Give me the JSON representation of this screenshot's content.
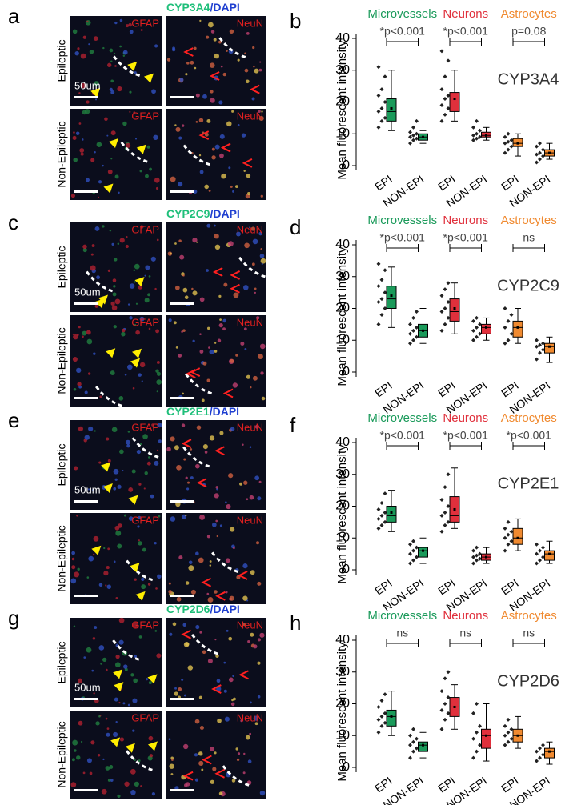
{
  "figure": [
    {
      "panel": "a",
      "stain": "CYP3A4",
      "sep": "/",
      "counterstain": "DAPI",
      "row_labels": [
        "Epileptic",
        "Non-Epileptic"
      ],
      "channel_labels": [
        "GFAP",
        "NeuN"
      ],
      "scale": "50um"
    },
    {
      "panel": "c",
      "stain": "CYP2C9",
      "sep": "/",
      "counterstain": "DAPI",
      "row_labels": [
        "Epileptic",
        "Non-Epileptic"
      ],
      "channel_labels": [
        "GFAP",
        "NeuN"
      ],
      "scale": "50um"
    },
    {
      "panel": "e",
      "stain": "CYP2E1",
      "sep": "/",
      "counterstain": "DAPI",
      "row_labels": [
        "Epileptic",
        "Non-Epileptic"
      ],
      "channel_labels": [
        "GFAP",
        "NeuN"
      ],
      "scale": "50um"
    },
    {
      "panel": "g",
      "stain": "CYP2D6",
      "sep": "/",
      "counterstain": "DAPI",
      "row_labels": [
        "Epileptic",
        "Non-Epileptic"
      ],
      "channel_labels": [
        "GFAP",
        "NeuN"
      ],
      "scale": "50um"
    }
  ],
  "chart_data": [
    {
      "type": "box",
      "panel": "b",
      "title": "CYP3A4",
      "ylabel": "Mean fluorescent intensity",
      "ylim": [
        0,
        40
      ],
      "yticks": [
        0,
        10,
        20,
        30,
        40
      ],
      "categories": [
        "EPI",
        "NON-EPI",
        "EPI",
        "NON-EPI",
        "EPI",
        "NON-EPI"
      ],
      "groups": [
        {
          "name": "Microvessels",
          "color": "#1a9a5a",
          "test": "*p<0.001"
        },
        {
          "name": "Neurons",
          "color": "#e0303c",
          "test": "*p<0.001"
        },
        {
          "name": "Astrocytes",
          "color": "#f08a30",
          "test": "p=0.08"
        }
      ],
      "boxes": [
        {
          "whisker_low": 11,
          "q1": 14,
          "median": 17,
          "q3": 21,
          "whisker_high": 30,
          "mean": 18,
          "points": [
            12,
            14,
            15,
            17,
            18,
            20,
            22,
            24,
            28,
            31
          ]
        },
        {
          "whisker_low": 7,
          "q1": 8,
          "median": 9,
          "q3": 10,
          "whisker_high": 11,
          "mean": 9,
          "points": [
            7,
            8,
            8.5,
            9,
            9.5,
            10,
            10.5,
            12,
            14
          ]
        },
        {
          "whisker_low": 14,
          "q1": 17,
          "median": 20,
          "q3": 23,
          "whisker_high": 30,
          "mean": 21,
          "points": [
            14,
            16,
            18,
            19,
            21,
            22,
            24,
            28,
            33,
            36
          ]
        },
        {
          "whisker_low": 8,
          "q1": 9,
          "median": 9.5,
          "q3": 10.5,
          "whisker_high": 12,
          "mean": 9.5,
          "points": [
            8,
            8.5,
            9,
            9.5,
            10,
            11,
            12,
            14
          ]
        },
        {
          "whisker_low": 3,
          "q1": 6,
          "median": 7,
          "q3": 8.5,
          "whisker_high": 10,
          "mean": 7,
          "points": [
            4,
            5,
            6,
            7,
            7.5,
            8,
            9,
            10
          ]
        },
        {
          "whisker_low": 2,
          "q1": 3,
          "median": 4,
          "q3": 5,
          "whisker_high": 7,
          "mean": 4,
          "points": [
            1,
            2,
            3,
            3.5,
            4,
            5,
            6,
            7
          ]
        }
      ]
    },
    {
      "type": "box",
      "panel": "d",
      "title": "CYP2C9",
      "ylabel": "Mean fluorescent intensity",
      "ylim": [
        0,
        40
      ],
      "yticks": [
        0,
        10,
        20,
        30,
        40
      ],
      "categories": [
        "EPI",
        "NON-EPI",
        "EPI",
        "NON-EPI",
        "EPI",
        "NON-EPI"
      ],
      "groups": [
        {
          "name": "Microvessels",
          "color": "#1a9a5a",
          "test": "*p<0.001"
        },
        {
          "name": "Neurons",
          "color": "#e0303c",
          "test": "*p<0.001"
        },
        {
          "name": "Astrocytes",
          "color": "#f08a30",
          "test": "ns"
        }
      ],
      "boxes": [
        {
          "whisker_low": 14,
          "q1": 20,
          "median": 23,
          "q3": 27,
          "whisker_high": 33,
          "mean": 24,
          "points": [
            15,
            18,
            20,
            22,
            23,
            25,
            27,
            29,
            32,
            34
          ]
        },
        {
          "whisker_low": 9,
          "q1": 11,
          "median": 13,
          "q3": 15,
          "whisker_high": 20,
          "mean": 13,
          "points": [
            9,
            10,
            11,
            12,
            13,
            14,
            15,
            17,
            19
          ]
        },
        {
          "whisker_low": 12,
          "q1": 16,
          "median": 19,
          "q3": 23,
          "whisker_high": 28,
          "mean": 20,
          "points": [
            13,
            15,
            17,
            19,
            20,
            22,
            24,
            26,
            28
          ]
        },
        {
          "whisker_low": 10,
          "q1": 12,
          "median": 14,
          "q3": 15,
          "whisker_high": 17,
          "mean": 14,
          "points": [
            10,
            11,
            12,
            13,
            14,
            15,
            16,
            17
          ]
        },
        {
          "whisker_low": 9,
          "q1": 11,
          "median": 14,
          "q3": 16,
          "whisker_high": 20,
          "mean": 14,
          "points": [
            9,
            10,
            12,
            14,
            16,
            18,
            20
          ]
        },
        {
          "whisker_low": 3,
          "q1": 6,
          "median": 8,
          "q3": 9,
          "whisker_high": 11,
          "mean": 8,
          "points": [
            4,
            6,
            7,
            8,
            8.5,
            9,
            10
          ]
        }
      ]
    },
    {
      "type": "box",
      "panel": "f",
      "title": "CYP2E1",
      "ylabel": "Mean fluorescent intensity",
      "ylim": [
        0,
        40
      ],
      "yticks": [
        0,
        10,
        20,
        30,
        40
      ],
      "categories": [
        "EPI",
        "NON-EPI",
        "EPI",
        "NON-EPI",
        "EPI",
        "NON-EPI"
      ],
      "groups": [
        {
          "name": "Microvessels",
          "color": "#1a9a5a",
          "test": "*p<0.001"
        },
        {
          "name": "Neurons",
          "color": "#e0303c",
          "test": "*p<0.001"
        },
        {
          "name": "Astrocytes",
          "color": "#f08a30",
          "test": "*p<0.001"
        }
      ],
      "boxes": [
        {
          "whisker_low": 12,
          "q1": 15,
          "median": 17,
          "q3": 20,
          "whisker_high": 25,
          "mean": 18,
          "points": [
            13,
            14,
            15,
            16,
            17,
            18,
            19,
            21,
            24
          ]
        },
        {
          "whisker_low": 2,
          "q1": 4,
          "median": 6,
          "q3": 7,
          "whisker_high": 10,
          "mean": 6,
          "points": [
            2,
            3,
            4,
            5,
            6,
            7,
            8,
            9
          ]
        },
        {
          "whisker_low": 13,
          "q1": 15,
          "median": 17,
          "q3": 23,
          "whisker_high": 32,
          "mean": 19,
          "points": [
            12,
            14,
            15,
            17,
            18,
            20,
            22,
            26,
            30
          ]
        },
        {
          "whisker_low": 2,
          "q1": 3,
          "median": 4,
          "q3": 5,
          "whisker_high": 7,
          "mean": 4,
          "points": [
            2,
            3,
            3.5,
            4,
            4.5,
            5,
            6,
            7
          ]
        },
        {
          "whisker_low": 6,
          "q1": 8,
          "median": 10,
          "q3": 13,
          "whisker_high": 16,
          "mean": 10,
          "points": [
            6,
            8,
            9,
            10,
            11,
            12,
            13,
            15
          ]
        },
        {
          "whisker_low": 2,
          "q1": 3,
          "median": 5,
          "q3": 6,
          "whisker_high": 9,
          "mean": 5,
          "points": [
            2,
            3,
            4,
            5,
            6,
            7,
            8
          ]
        }
      ]
    },
    {
      "type": "box",
      "panel": "h",
      "title": "CYP2D6",
      "ylabel": "Mean fluorescent intensity",
      "ylim": [
        0,
        40
      ],
      "yticks": [
        0,
        10,
        20,
        30,
        40
      ],
      "categories": [
        "EPI",
        "NON-EPI",
        "EPI",
        "NON-EPI",
        "EPI",
        "NON-EPI"
      ],
      "groups": [
        {
          "name": "Microvessels",
          "color": "#1a9a5a",
          "test": "ns"
        },
        {
          "name": "Neurons",
          "color": "#e0303c",
          "test": "ns"
        },
        {
          "name": "Astrocytes",
          "color": "#f08a30",
          "test": "ns"
        }
      ],
      "boxes": [
        {
          "whisker_low": 10,
          "q1": 13,
          "median": 16,
          "q3": 18,
          "whisker_high": 24,
          "mean": 16,
          "points": [
            11,
            13,
            14,
            15,
            16,
            17,
            19,
            21,
            23
          ]
        },
        {
          "whisker_low": 3,
          "q1": 5,
          "median": 7,
          "q3": 8,
          "whisker_high": 11,
          "mean": 7,
          "points": [
            3,
            5,
            6,
            7,
            8,
            9,
            10,
            12
          ]
        },
        {
          "whisker_low": 12,
          "q1": 16,
          "median": 19,
          "q3": 22,
          "whisker_high": 26,
          "mean": 19,
          "points": [
            12,
            15,
            17,
            18,
            20,
            22,
            24,
            28,
            30
          ]
        },
        {
          "whisker_low": 2,
          "q1": 6,
          "median": 10,
          "q3": 12,
          "whisker_high": 20,
          "mean": 10,
          "points": [
            3,
            5,
            7,
            9,
            11,
            13,
            17,
            20
          ]
        },
        {
          "whisker_low": 6,
          "q1": 8,
          "median": 10,
          "q3": 12,
          "whisker_high": 16,
          "mean": 10,
          "points": [
            7,
            8,
            9,
            10,
            11,
            12,
            13,
            15
          ]
        },
        {
          "whisker_low": 1,
          "q1": 3,
          "median": 5,
          "q3": 6,
          "whisker_high": 8,
          "mean": 5,
          "points": [
            2,
            3,
            4,
            5,
            6,
            7
          ]
        }
      ]
    }
  ]
}
